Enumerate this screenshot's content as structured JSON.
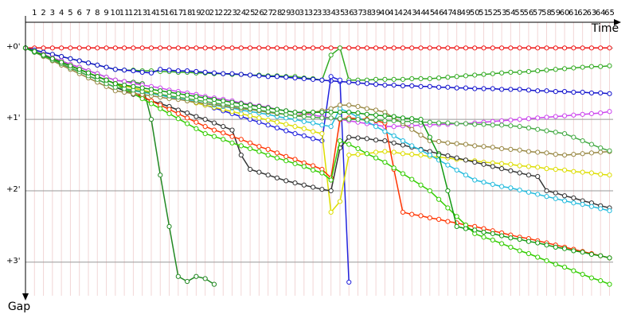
{
  "chart_data": {
    "type": "line",
    "x_axis_title": "Time",
    "y_axis_title": "Gap",
    "x": [
      0,
      1,
      2,
      3,
      4,
      5,
      6,
      7,
      8,
      9,
      10,
      11,
      12,
      13,
      14,
      15,
      16,
      17,
      18,
      19,
      20,
      21,
      22,
      23,
      24,
      25,
      26,
      27,
      28,
      29,
      30,
      31,
      32,
      33,
      34,
      35,
      36,
      37,
      38,
      39,
      40,
      41,
      42,
      43,
      44,
      45,
      46,
      47,
      48,
      49,
      50,
      51,
      52,
      53,
      54,
      55,
      56,
      57,
      58,
      59,
      60,
      61,
      62,
      63,
      64,
      65
    ],
    "xlim": [
      0,
      65.4
    ],
    "xticks": [
      1,
      2,
      3,
      4,
      5,
      6,
      7,
      8,
      9,
      10,
      11,
      12,
      13,
      14,
      15,
      16,
      17,
      18,
      19,
      20,
      21,
      22,
      23,
      24,
      25,
      26,
      27,
      28,
      29,
      30,
      31,
      32,
      33,
      34,
      35,
      36,
      37,
      38,
      39,
      40,
      41,
      42,
      43,
      44,
      45,
      46,
      47,
      48,
      49,
      50,
      51,
      52,
      53,
      54,
      55,
      56,
      57,
      58,
      59,
      60,
      61,
      62,
      63,
      64,
      65
    ],
    "ylim": [
      -0.36,
      3.47
    ],
    "yticks": [
      {
        "value": 0,
        "label": "+0'"
      },
      {
        "value": 1,
        "label": "+1'"
      },
      {
        "value": 2,
        "label": "+2'"
      },
      {
        "value": 3,
        "label": "+3'"
      }
    ],
    "grid": true,
    "series": [
      {
        "color": "#ee1111",
        "values": [
          0,
          0,
          0,
          0,
          0,
          0,
          0,
          0,
          0,
          0,
          0,
          0,
          0,
          0,
          0,
          0,
          0,
          0,
          0,
          0,
          0,
          0,
          0,
          0,
          0,
          0,
          0,
          0,
          0,
          0,
          0,
          0,
          0,
          0,
          0,
          0,
          0,
          0,
          0,
          0,
          0,
          0,
          0,
          0,
          0,
          0,
          0,
          0,
          0,
          0,
          0,
          0,
          0,
          0,
          0,
          0,
          0,
          0,
          0,
          0,
          0,
          0,
          0,
          0,
          0,
          0
        ]
      },
      {
        "color": "#33aa22",
        "values": [
          0,
          0.03,
          0.06,
          0.09,
          0.12,
          0.15,
          0.18,
          0.21,
          0.24,
          0.27,
          0.3,
          0.31,
          0.31,
          0.32,
          0.32,
          0.33,
          0.33,
          0.34,
          0.34,
          0.35,
          0.35,
          0.36,
          0.36,
          0.37,
          0.37,
          0.38,
          0.38,
          0.39,
          0.39,
          0.4,
          0.4,
          0.42,
          0.43,
          0.45,
          0.1,
          0,
          0.45,
          0.45,
          0.45,
          0.44,
          0.44,
          0.44,
          0.44,
          0.43,
          0.43,
          0.43,
          0.42,
          0.41,
          0.4,
          0.39,
          0.38,
          0.37,
          0.36,
          0.35,
          0.34,
          0.34,
          0.33,
          0.32,
          0.31,
          0.3,
          0.29,
          0.28,
          0.27,
          0.26,
          0.26,
          0.25
        ]
      },
      {
        "color": "#1111cc",
        "values": [
          0,
          0.03,
          0.06,
          0.09,
          0.12,
          0.15,
          0.18,
          0.21,
          0.24,
          0.27,
          0.3,
          0.31,
          0.32,
          0.34,
          0.35,
          0.3,
          0.31,
          0.32,
          0.32,
          0.33,
          0.34,
          0.35,
          0.36,
          0.36,
          0.37,
          0.38,
          0.39,
          0.4,
          0.4,
          0.41,
          0.42,
          0.43,
          0.44,
          0.45,
          0.46,
          0.47,
          0.48,
          0.49,
          0.5,
          0.51,
          0.52,
          0.52,
          0.53,
          0.53,
          0.54,
          0.54,
          0.55,
          0.55,
          0.56,
          0.56,
          0.57,
          0.57,
          0.57,
          0.58,
          0.58,
          0.58,
          0.59,
          0.6,
          0.6,
          0.61,
          0.61,
          0.62,
          0.62,
          0.63,
          0.63,
          0.64
        ]
      },
      {
        "color": "#228822",
        "values": [
          0,
          0.05,
          0.09,
          0.14,
          0.18,
          0.23,
          0.27,
          0.32,
          0.36,
          0.41,
          0.45,
          0.47,
          0.48,
          0.5,
          1.0,
          1.78,
          2.5,
          3.2,
          3.27,
          3.2,
          3.23,
          3.31,
          null,
          null,
          null,
          null,
          null,
          null,
          null,
          null,
          null,
          null,
          null,
          null,
          null,
          null,
          null,
          null,
          null,
          null,
          null,
          null,
          null,
          null,
          null,
          null,
          null,
          null,
          null,
          null,
          null,
          null,
          null,
          null,
          null,
          null,
          null,
          null,
          null,
          null,
          null,
          null,
          null,
          null,
          null,
          null
        ]
      },
      {
        "color": "#2222dd",
        "values": [
          0,
          0.05,
          0.1,
          0.15,
          0.2,
          0.25,
          0.3,
          0.35,
          0.4,
          0.45,
          0.5,
          0.53,
          0.56,
          0.59,
          0.62,
          0.65,
          0.68,
          0.71,
          0.74,
          0.77,
          0.8,
          0.84,
          0.88,
          0.92,
          0.96,
          1.0,
          1.04,
          1.08,
          1.12,
          1.16,
          1.2,
          1.23,
          1.27,
          1.3,
          0.4,
          0.45,
          3.28,
          null,
          null,
          null,
          null,
          null,
          null,
          null,
          null,
          null,
          null,
          null,
          null,
          null,
          null,
          null,
          null,
          null,
          null,
          null,
          null,
          null,
          null,
          null,
          null,
          null,
          null,
          null,
          null,
          null
        ]
      },
      {
        "color": "#cc44ee",
        "values": [
          0,
          0.05,
          0.09,
          0.14,
          0.18,
          0.23,
          0.27,
          0.32,
          0.36,
          0.41,
          0.45,
          0.47,
          0.5,
          0.52,
          0.54,
          0.56,
          0.59,
          0.61,
          0.63,
          0.65,
          0.68,
          0.7,
          0.72,
          0.74,
          0.77,
          0.79,
          0.81,
          0.83,
          0.86,
          0.88,
          0.9,
          0.92,
          0.94,
          0.96,
          0.98,
          1.0,
          1.02,
          1.04,
          1.06,
          1.08,
          1.1,
          1.1,
          1.09,
          1.09,
          1.08,
          1.08,
          1.07,
          1.07,
          1.06,
          1.06,
          1.05,
          1.04,
          1.03,
          1.02,
          1.01,
          1.0,
          0.99,
          0.98,
          0.97,
          0.96,
          0.95,
          0.94,
          0.93,
          0.92,
          0.91,
          0.89
        ]
      },
      {
        "color": "#dddd00",
        "values": [
          0,
          0.05,
          0.1,
          0.15,
          0.2,
          0.25,
          0.3,
          0.35,
          0.4,
          0.45,
          0.5,
          0.53,
          0.56,
          0.59,
          0.62,
          0.65,
          0.68,
          0.71,
          0.74,
          0.77,
          0.8,
          0.83,
          0.86,
          0.89,
          0.92,
          0.95,
          0.98,
          1.01,
          1.04,
          1.07,
          1.1,
          1.13,
          1.17,
          1.2,
          2.3,
          2.15,
          1.5,
          1.49,
          1.48,
          1.46,
          1.45,
          1.46,
          1.48,
          1.49,
          1.5,
          1.52,
          1.53,
          1.54,
          1.56,
          1.57,
          1.58,
          1.6,
          1.61,
          1.62,
          1.63,
          1.65,
          1.66,
          1.67,
          1.69,
          1.7,
          1.71,
          1.73,
          1.74,
          1.75,
          1.77,
          1.78
        ]
      },
      {
        "color": "#333333",
        "values": [
          0,
          0.06,
          0.11,
          0.17,
          0.22,
          0.28,
          0.33,
          0.39,
          0.44,
          0.5,
          0.55,
          0.6,
          0.65,
          0.69,
          0.74,
          0.78,
          0.82,
          0.87,
          0.91,
          0.96,
          1.0,
          1.05,
          1.1,
          1.15,
          1.5,
          1.7,
          1.74,
          1.78,
          1.82,
          1.86,
          1.89,
          1.92,
          1.95,
          1.98,
          2.0,
          1.4,
          1.25,
          1.26,
          1.27,
          1.29,
          1.3,
          1.33,
          1.36,
          1.39,
          1.42,
          1.45,
          1.48,
          1.51,
          1.54,
          1.57,
          1.6,
          1.63,
          1.66,
          1.69,
          1.72,
          1.75,
          1.78,
          1.8,
          2.0,
          2.03,
          2.07,
          2.1,
          2.14,
          2.17,
          2.21,
          2.24
        ]
      },
      {
        "color": "#ff3300",
        "values": [
          0,
          0.05,
          0.1,
          0.15,
          0.2,
          0.25,
          0.3,
          0.35,
          0.4,
          0.45,
          0.5,
          0.56,
          0.62,
          0.68,
          0.74,
          0.8,
          0.86,
          0.92,
          0.98,
          1.04,
          1.1,
          1.15,
          1.19,
          1.24,
          1.28,
          1.33,
          1.38,
          1.42,
          1.47,
          1.52,
          1.56,
          1.61,
          1.65,
          1.7,
          1.82,
          1.0,
          0.98,
          0.99,
          1.0,
          1.02,
          1.05,
          1.7,
          2.3,
          2.33,
          2.35,
          2.38,
          2.4,
          2.43,
          2.45,
          2.48,
          2.5,
          2.53,
          2.56,
          2.59,
          2.62,
          2.65,
          2.67,
          2.7,
          2.73,
          2.76,
          2.79,
          2.82,
          2.85,
          2.88,
          2.91,
          2.94
        ]
      },
      {
        "color": "#33cc00",
        "values": [
          0,
          0.05,
          0.1,
          0.15,
          0.2,
          0.25,
          0.3,
          0.35,
          0.4,
          0.45,
          0.5,
          0.57,
          0.64,
          0.71,
          0.78,
          0.85,
          0.92,
          0.99,
          1.06,
          1.13,
          1.2,
          1.24,
          1.28,
          1.33,
          1.37,
          1.41,
          1.45,
          1.5,
          1.54,
          1.58,
          1.62,
          1.66,
          1.71,
          1.75,
          1.85,
          1.3,
          1.35,
          1.41,
          1.48,
          1.54,
          1.6,
          1.68,
          1.76,
          1.84,
          1.92,
          2.0,
          2.12,
          2.24,
          2.36,
          2.48,
          2.6,
          2.65,
          2.69,
          2.74,
          2.79,
          2.84,
          2.88,
          2.93,
          2.98,
          3.03,
          3.07,
          3.12,
          3.17,
          3.22,
          3.26,
          3.31
        ]
      },
      {
        "color": "#22bbdd",
        "values": [
          0,
          0.06,
          0.11,
          0.17,
          0.22,
          0.28,
          0.33,
          0.39,
          0.44,
          0.5,
          0.55,
          0.57,
          0.6,
          0.62,
          0.64,
          0.66,
          0.69,
          0.71,
          0.73,
          0.75,
          0.78,
          0.8,
          0.82,
          0.84,
          0.87,
          0.89,
          0.91,
          0.93,
          0.96,
          0.98,
          1.0,
          1.03,
          1.05,
          1.08,
          1.1,
          0.85,
          0.9,
          0.97,
          1.03,
          1.1,
          1.17,
          1.23,
          1.3,
          1.37,
          1.43,
          1.5,
          1.57,
          1.64,
          1.71,
          1.78,
          1.85,
          1.88,
          1.91,
          1.94,
          1.96,
          1.99,
          2.02,
          2.05,
          2.08,
          2.11,
          2.14,
          2.17,
          2.19,
          2.22,
          2.25,
          2.28
        ]
      },
      {
        "color": "#998844",
        "values": [
          0,
          0.06,
          0.12,
          0.18,
          0.24,
          0.3,
          0.36,
          0.42,
          0.48,
          0.54,
          0.6,
          0.62,
          0.64,
          0.65,
          0.67,
          0.69,
          0.71,
          0.72,
          0.74,
          0.76,
          0.78,
          0.79,
          0.81,
          0.83,
          0.85,
          0.86,
          0.88,
          0.9,
          0.92,
          0.93,
          0.95,
          0.93,
          0.9,
          0.88,
          0.85,
          0.8,
          0.8,
          0.82,
          0.85,
          0.87,
          0.9,
          0.98,
          1.06,
          1.14,
          1.22,
          1.3,
          1.31,
          1.33,
          1.34,
          1.35,
          1.37,
          1.38,
          1.39,
          1.41,
          1.42,
          1.43,
          1.45,
          1.46,
          1.47,
          1.49,
          1.5,
          1.49,
          1.48,
          1.47,
          1.46,
          1.45
        ]
      },
      {
        "color": "#44aa44",
        "values": [
          0,
          0.06,
          0.11,
          0.17,
          0.22,
          0.28,
          0.33,
          0.39,
          0.44,
          0.5,
          0.55,
          0.57,
          0.59,
          0.61,
          0.63,
          0.65,
          0.67,
          0.69,
          0.71,
          0.73,
          0.75,
          0.77,
          0.79,
          0.81,
          0.83,
          0.85,
          0.87,
          0.89,
          0.91,
          0.93,
          0.95,
          0.96,
          0.97,
          0.98,
          0.98,
          0.99,
          1.0,
          1.0,
          1.01,
          1.01,
          1.02,
          1.02,
          1.03,
          1.03,
          1.04,
          1.04,
          1.05,
          1.05,
          1.06,
          1.06,
          1.07,
          1.07,
          1.08,
          1.08,
          1.09,
          1.1,
          1.12,
          1.14,
          1.16,
          1.18,
          1.2,
          1.25,
          1.3,
          1.35,
          1.4,
          1.44
        ]
      },
      {
        "color": "#119911",
        "values": [
          0,
          0.05,
          0.1,
          0.15,
          0.2,
          0.25,
          0.3,
          0.35,
          0.4,
          0.45,
          0.5,
          0.52,
          0.54,
          0.56,
          0.58,
          0.6,
          0.62,
          0.64,
          0.66,
          0.68,
          0.7,
          0.72,
          0.74,
          0.76,
          0.78,
          0.8,
          0.82,
          0.84,
          0.86,
          0.88,
          0.9,
          0.9,
          0.9,
          0.9,
          0.9,
          0.9,
          0.9,
          0.91,
          0.93,
          0.94,
          0.95,
          0.96,
          0.98,
          0.99,
          1.0,
          1.25,
          1.5,
          2.0,
          2.5,
          2.53,
          2.55,
          2.58,
          2.6,
          2.63,
          2.66,
          2.68,
          2.71,
          2.73,
          2.76,
          2.79,
          2.81,
          2.84,
          2.86,
          2.89,
          2.91,
          2.94
        ]
      }
    ]
  }
}
